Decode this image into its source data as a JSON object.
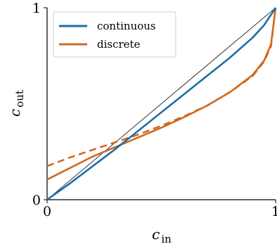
{
  "chart_data": {
    "type": "line",
    "title": "",
    "xlabel": "c",
    "xlabel_sub": "in",
    "ylabel": "c",
    "ylabel_sub": "out",
    "xlim": [
      0,
      1
    ],
    "ylim": [
      0,
      1
    ],
    "x_ticks": [
      "0",
      "1"
    ],
    "y_ticks": [
      "0",
      "1"
    ],
    "grid": false,
    "legend_position": "top-left",
    "colors": {
      "continuous": "#1a6fa8",
      "discrete": "#d2691e",
      "identity": "#000000"
    },
    "series": [
      {
        "name": "continuous",
        "style": "solid",
        "x": [
          0,
          0.1,
          0.2,
          0.3,
          0.4,
          0.5,
          0.6,
          0.7,
          0.8,
          0.9,
          0.95,
          1.0
        ],
        "y": [
          0,
          0.085,
          0.175,
          0.265,
          0.36,
          0.455,
          0.55,
          0.645,
          0.74,
          0.845,
          0.91,
          1.0
        ]
      },
      {
        "name": "discrete",
        "style": "solid",
        "x": [
          0,
          0.1,
          0.2,
          0.3,
          0.4,
          0.5,
          0.6,
          0.7,
          0.8,
          0.9,
          0.95,
          0.98,
          1.0
        ],
        "y": [
          0.105,
          0.165,
          0.225,
          0.275,
          0.325,
          0.375,
          0.43,
          0.49,
          0.56,
          0.65,
          0.725,
          0.81,
          1.0
        ]
      },
      {
        "style": "dashed",
        "x": [
          0,
          0.1,
          0.2,
          0.3,
          0.4,
          0.5,
          0.6,
          0.7,
          0.8,
          0.9,
          0.95,
          0.98,
          1.0
        ],
        "y": [
          0.175,
          0.22,
          0.26,
          0.3,
          0.34,
          0.385,
          0.435,
          0.49,
          0.56,
          0.645,
          0.72,
          0.8,
          1.0
        ]
      },
      {
        "style": "thin",
        "x": [
          0,
          1
        ],
        "y": [
          0,
          1
        ]
      }
    ]
  }
}
